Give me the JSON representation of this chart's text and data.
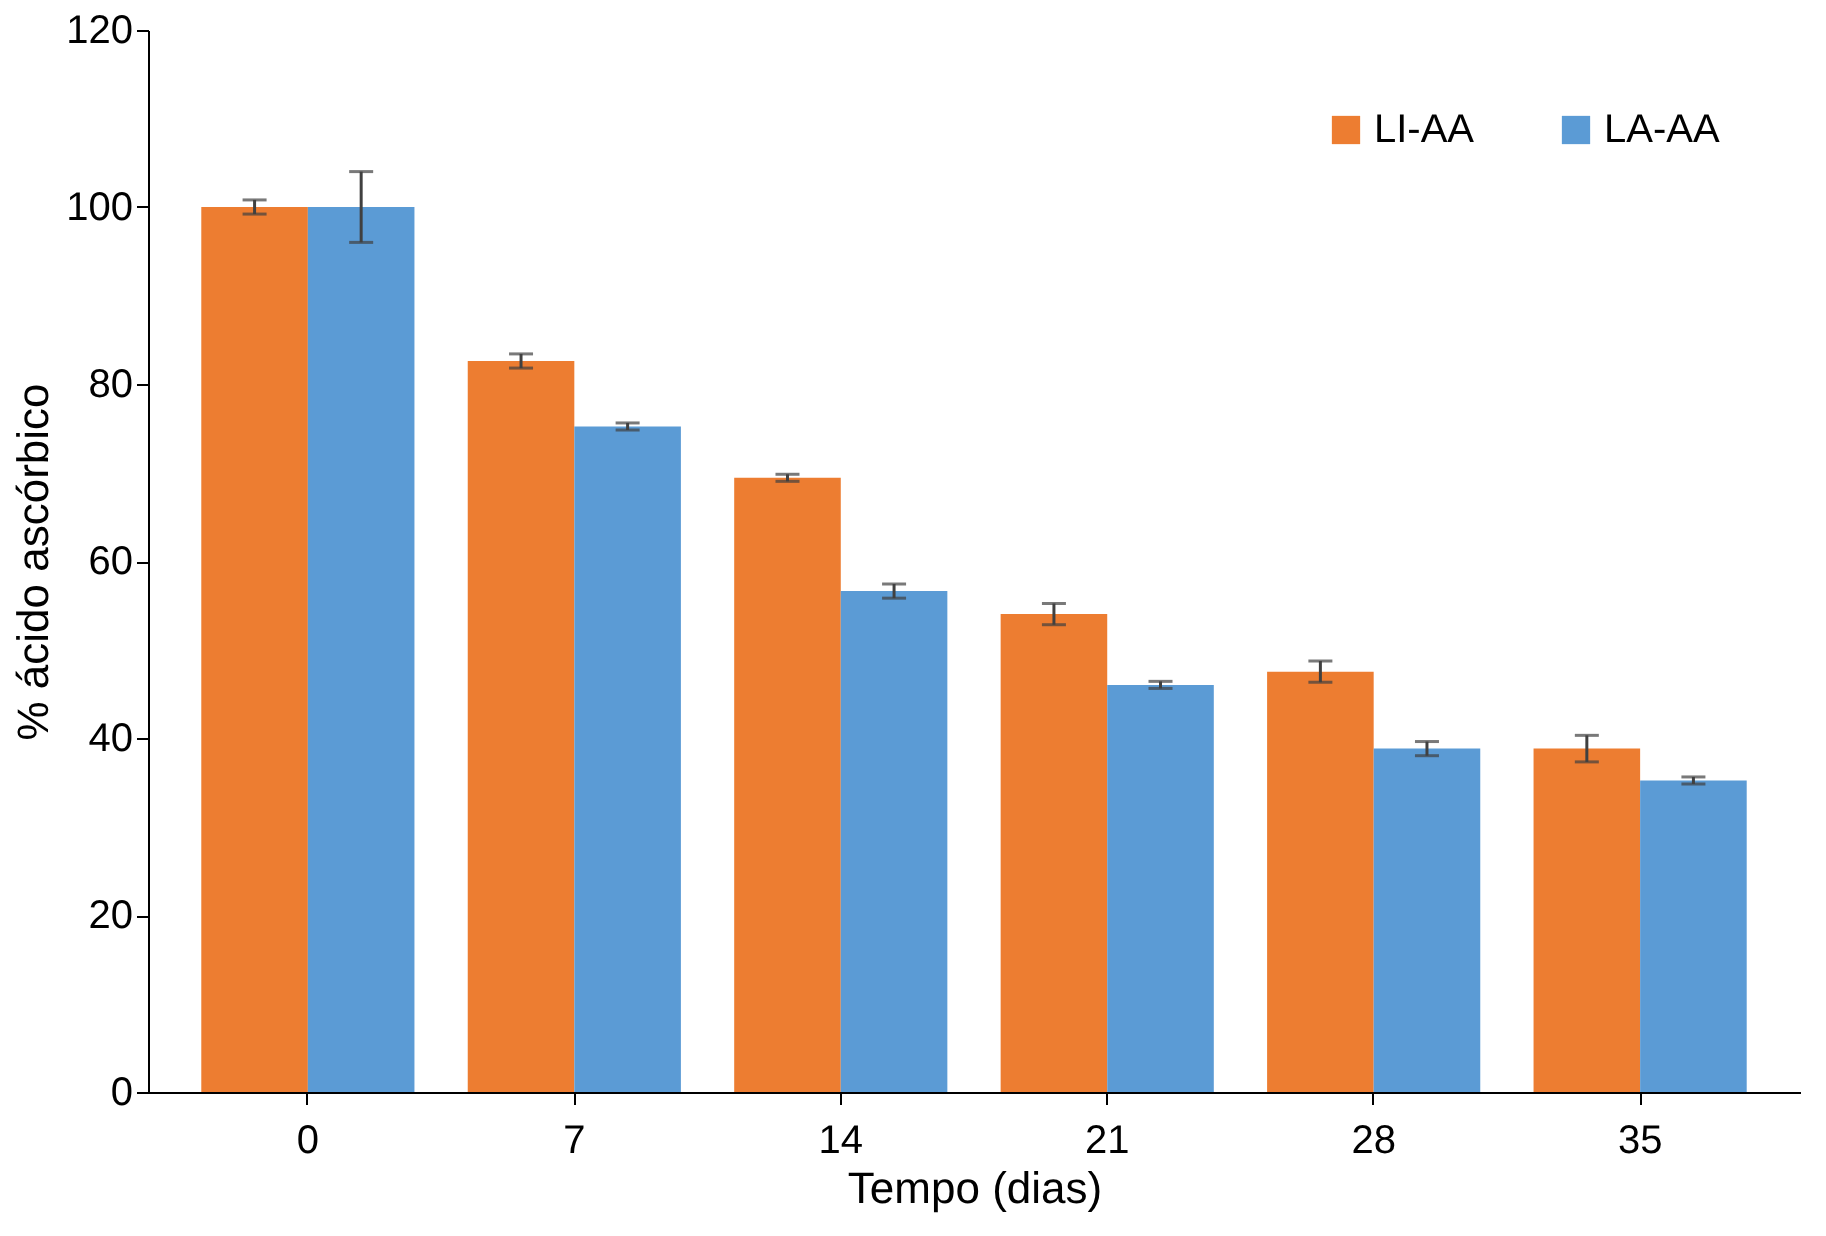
{
  "chart_data": {
    "type": "bar",
    "xlabel": "Tempo (dias)",
    "ylabel": "% ácido ascórbico",
    "categories": [
      "0",
      "7",
      "14",
      "21",
      "28",
      "35"
    ],
    "series": [
      {
        "name": "LI-AA",
        "color": "#ed7d31",
        "values": [
          100,
          82.6,
          69.4,
          54.0,
          47.5,
          38.8
        ],
        "errors": [
          0.8,
          0.8,
          0.4,
          1.2,
          1.2,
          1.5
        ]
      },
      {
        "name": "LA-AA",
        "color": "#5b9bd5",
        "values": [
          100,
          75.2,
          56.6,
          46.0,
          38.8,
          35.2
        ],
        "errors": [
          4,
          0.4,
          0.8,
          0.4,
          0.8,
          0.4
        ]
      }
    ],
    "ylim": [
      0,
      120
    ],
    "yticks": [
      0,
      20,
      40,
      60,
      80,
      100,
      120
    ],
    "grid": false,
    "legend": "top right"
  }
}
